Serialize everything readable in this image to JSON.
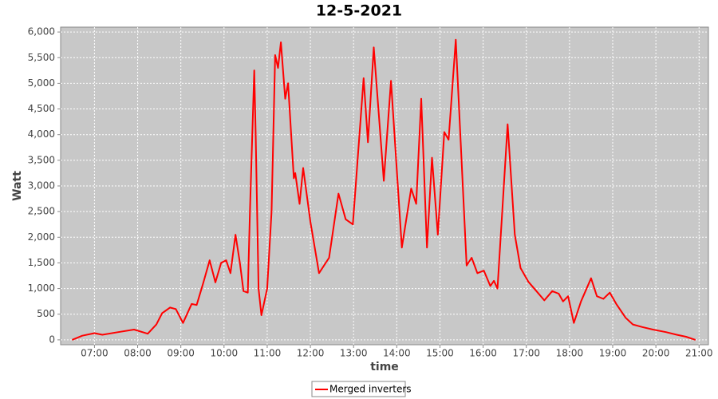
{
  "chart_data": {
    "type": "line",
    "title": "12-5-2021",
    "x_label": "time",
    "y_label": "Watt",
    "x": [
      "06:29",
      "06:43",
      "07:00",
      "07:11",
      "07:33",
      "07:55",
      "08:14",
      "08:26",
      "08:34",
      "08:45",
      "08:53",
      "09:03",
      "09:15",
      "09:22",
      "09:31",
      "09:40",
      "09:48",
      "09:56",
      "10:03",
      "10:09",
      "10:16",
      "10:22",
      "10:27",
      "10:33",
      "10:36",
      "10:42",
      "10:44",
      "10:48",
      "10:52",
      "11:00",
      "11:06",
      "11:11",
      "11:15",
      "11:19",
      "11:25",
      "11:29",
      "11:37",
      "11:39",
      "11:45",
      "11:50",
      "12:00",
      "12:12",
      "12:26",
      "12:39",
      "12:49",
      "12:59",
      "13:14",
      "13:20",
      "13:28",
      "13:42",
      "13:52",
      "14:07",
      "14:20",
      "14:27",
      "14:34",
      "14:42",
      "14:49",
      "14:57",
      "15:06",
      "15:12",
      "15:22",
      "15:37",
      "15:44",
      "15:52",
      "16:01",
      "16:10",
      "16:15",
      "16:20",
      "16:34",
      "16:44",
      "16:52",
      "17:03",
      "17:14",
      "17:25",
      "17:36",
      "17:45",
      "17:51",
      "17:58",
      "18:06",
      "18:16",
      "18:30",
      "18:38",
      "18:47",
      "18:56",
      "19:05",
      "19:18",
      "19:28",
      "19:41",
      "19:56",
      "20:14",
      "20:29",
      "20:42",
      "20:55"
    ],
    "series": [
      {
        "name": "Merged inverters",
        "color": "#ff0000",
        "values": [
          0,
          80,
          130,
          100,
          150,
          200,
          120,
          300,
          520,
          630,
          600,
          330,
          700,
          680,
          1100,
          1550,
          1120,
          1500,
          1550,
          1300,
          2050,
          1500,
          950,
          920,
          2500,
          5250,
          4000,
          1000,
          480,
          1000,
          2500,
          5550,
          5300,
          5800,
          4700,
          5000,
          3150,
          3250,
          2650,
          3350,
          2300,
          1300,
          1600,
          2850,
          2350,
          2250,
          5100,
          3850,
          5700,
          3100,
          5050,
          1800,
          2950,
          2650,
          4700,
          1800,
          3550,
          2050,
          4050,
          3900,
          5850,
          1450,
          1600,
          1300,
          1350,
          1050,
          1150,
          1000,
          4200,
          2050,
          1400,
          1130,
          950,
          770,
          950,
          900,
          750,
          850,
          330,
          750,
          1200,
          850,
          800,
          920,
          700,
          430,
          300,
          250,
          200,
          150,
          100,
          60,
          0
        ]
      }
    ],
    "xlim": [
      "06:13",
      "21:13"
    ],
    "xticks": [
      "07:00",
      "08:00",
      "09:00",
      "10:00",
      "11:00",
      "12:00",
      "13:00",
      "14:00",
      "15:00",
      "16:00",
      "17:00",
      "18:00",
      "19:00",
      "20:00",
      "21:00"
    ],
    "ylim": [
      -95,
      6095
    ],
    "yticks": [
      0,
      500,
      {
        "value": 1000,
        "label": "1,000"
      },
      {
        "value": 1500,
        "label": "1,500"
      },
      {
        "value": 2000,
        "label": "2,000"
      },
      {
        "value": 2500,
        "label": "2,500"
      },
      {
        "value": 3000,
        "label": "3,000"
      },
      {
        "value": 3500,
        "label": "3,500"
      },
      {
        "value": 4000,
        "label": "4,000"
      },
      {
        "value": 4500,
        "label": "4,500"
      },
      {
        "value": 5000,
        "label": "5,000"
      },
      {
        "value": 5500,
        "label": "5,500"
      },
      {
        "value": 6000,
        "label": "6,000"
      }
    ],
    "grid": true
  }
}
